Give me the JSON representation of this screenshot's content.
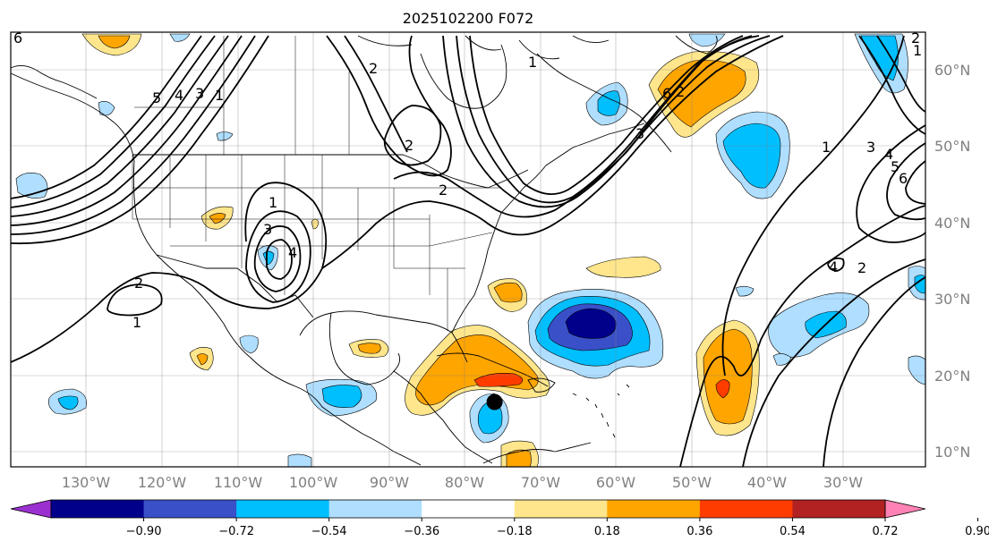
{
  "title": "2025102200 F072",
  "map": {
    "lon_range": [
      -140,
      -19
    ],
    "lat_range": [
      8,
      65
    ],
    "lat_labels": [
      "60°N",
      "50°N",
      "40°N",
      "30°N",
      "20°N",
      "10°N"
    ],
    "lon_labels": [
      "130°W",
      "120°W",
      "110°W",
      "100°W",
      "90°W",
      "80°W",
      "70°W",
      "60°W",
      "50°W",
      "40°W",
      "30°W"
    ],
    "contour_labels": [
      "6",
      "5",
      "4",
      "3",
      "2",
      "1",
      "2",
      "2",
      "1",
      "2",
      "3",
      "4",
      "1",
      "6",
      "3",
      "2",
      "1",
      "1",
      "2",
      "3",
      "4",
      "5",
      "6",
      "4",
      "2",
      "1"
    ],
    "marker": {
      "lat": 16.5,
      "lon": -76.0
    }
  },
  "colorbar": {
    "ticks": [
      "−0.90",
      "−0.72",
      "−0.54",
      "−0.36",
      "−0.18",
      "0.18",
      "0.36",
      "0.54",
      "0.72",
      "0.90"
    ],
    "colors": [
      "#9b30d0",
      "#00008b",
      "#3a50c8",
      "#00bfff",
      "#afdeff",
      "#ffffff",
      "#ffe68c",
      "#ffa500",
      "#ff3c00",
      "#b22222",
      "#ff82b4"
    ]
  }
}
